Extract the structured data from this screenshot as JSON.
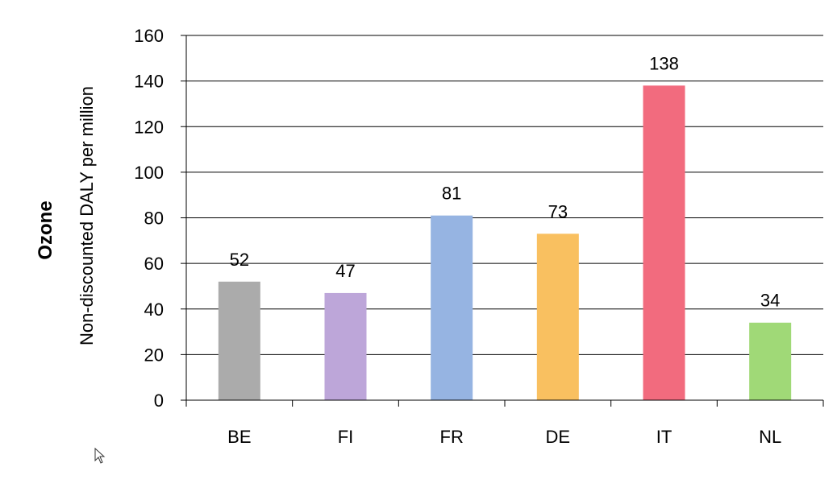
{
  "chart_data": {
    "type": "bar",
    "title": "",
    "ylabel_bold": "Ozone",
    "ylabel": "Non-discounted DALY per million",
    "xlabel": "",
    "ylim": [
      0,
      160
    ],
    "yticks": [
      0,
      20,
      40,
      60,
      80,
      100,
      120,
      140,
      160
    ],
    "grid": true,
    "categories": [
      "BE",
      "FI",
      "FR",
      "DE",
      "IT",
      "NL"
    ],
    "values": [
      52,
      47,
      81,
      73,
      138,
      34
    ],
    "colors": [
      "#ababab",
      "#bda6d9",
      "#96b4e2",
      "#f9c060",
      "#f26b7e",
      "#a0d977"
    ],
    "data_labels": [
      "52",
      "47",
      "81",
      "73",
      "138",
      "34"
    ]
  }
}
